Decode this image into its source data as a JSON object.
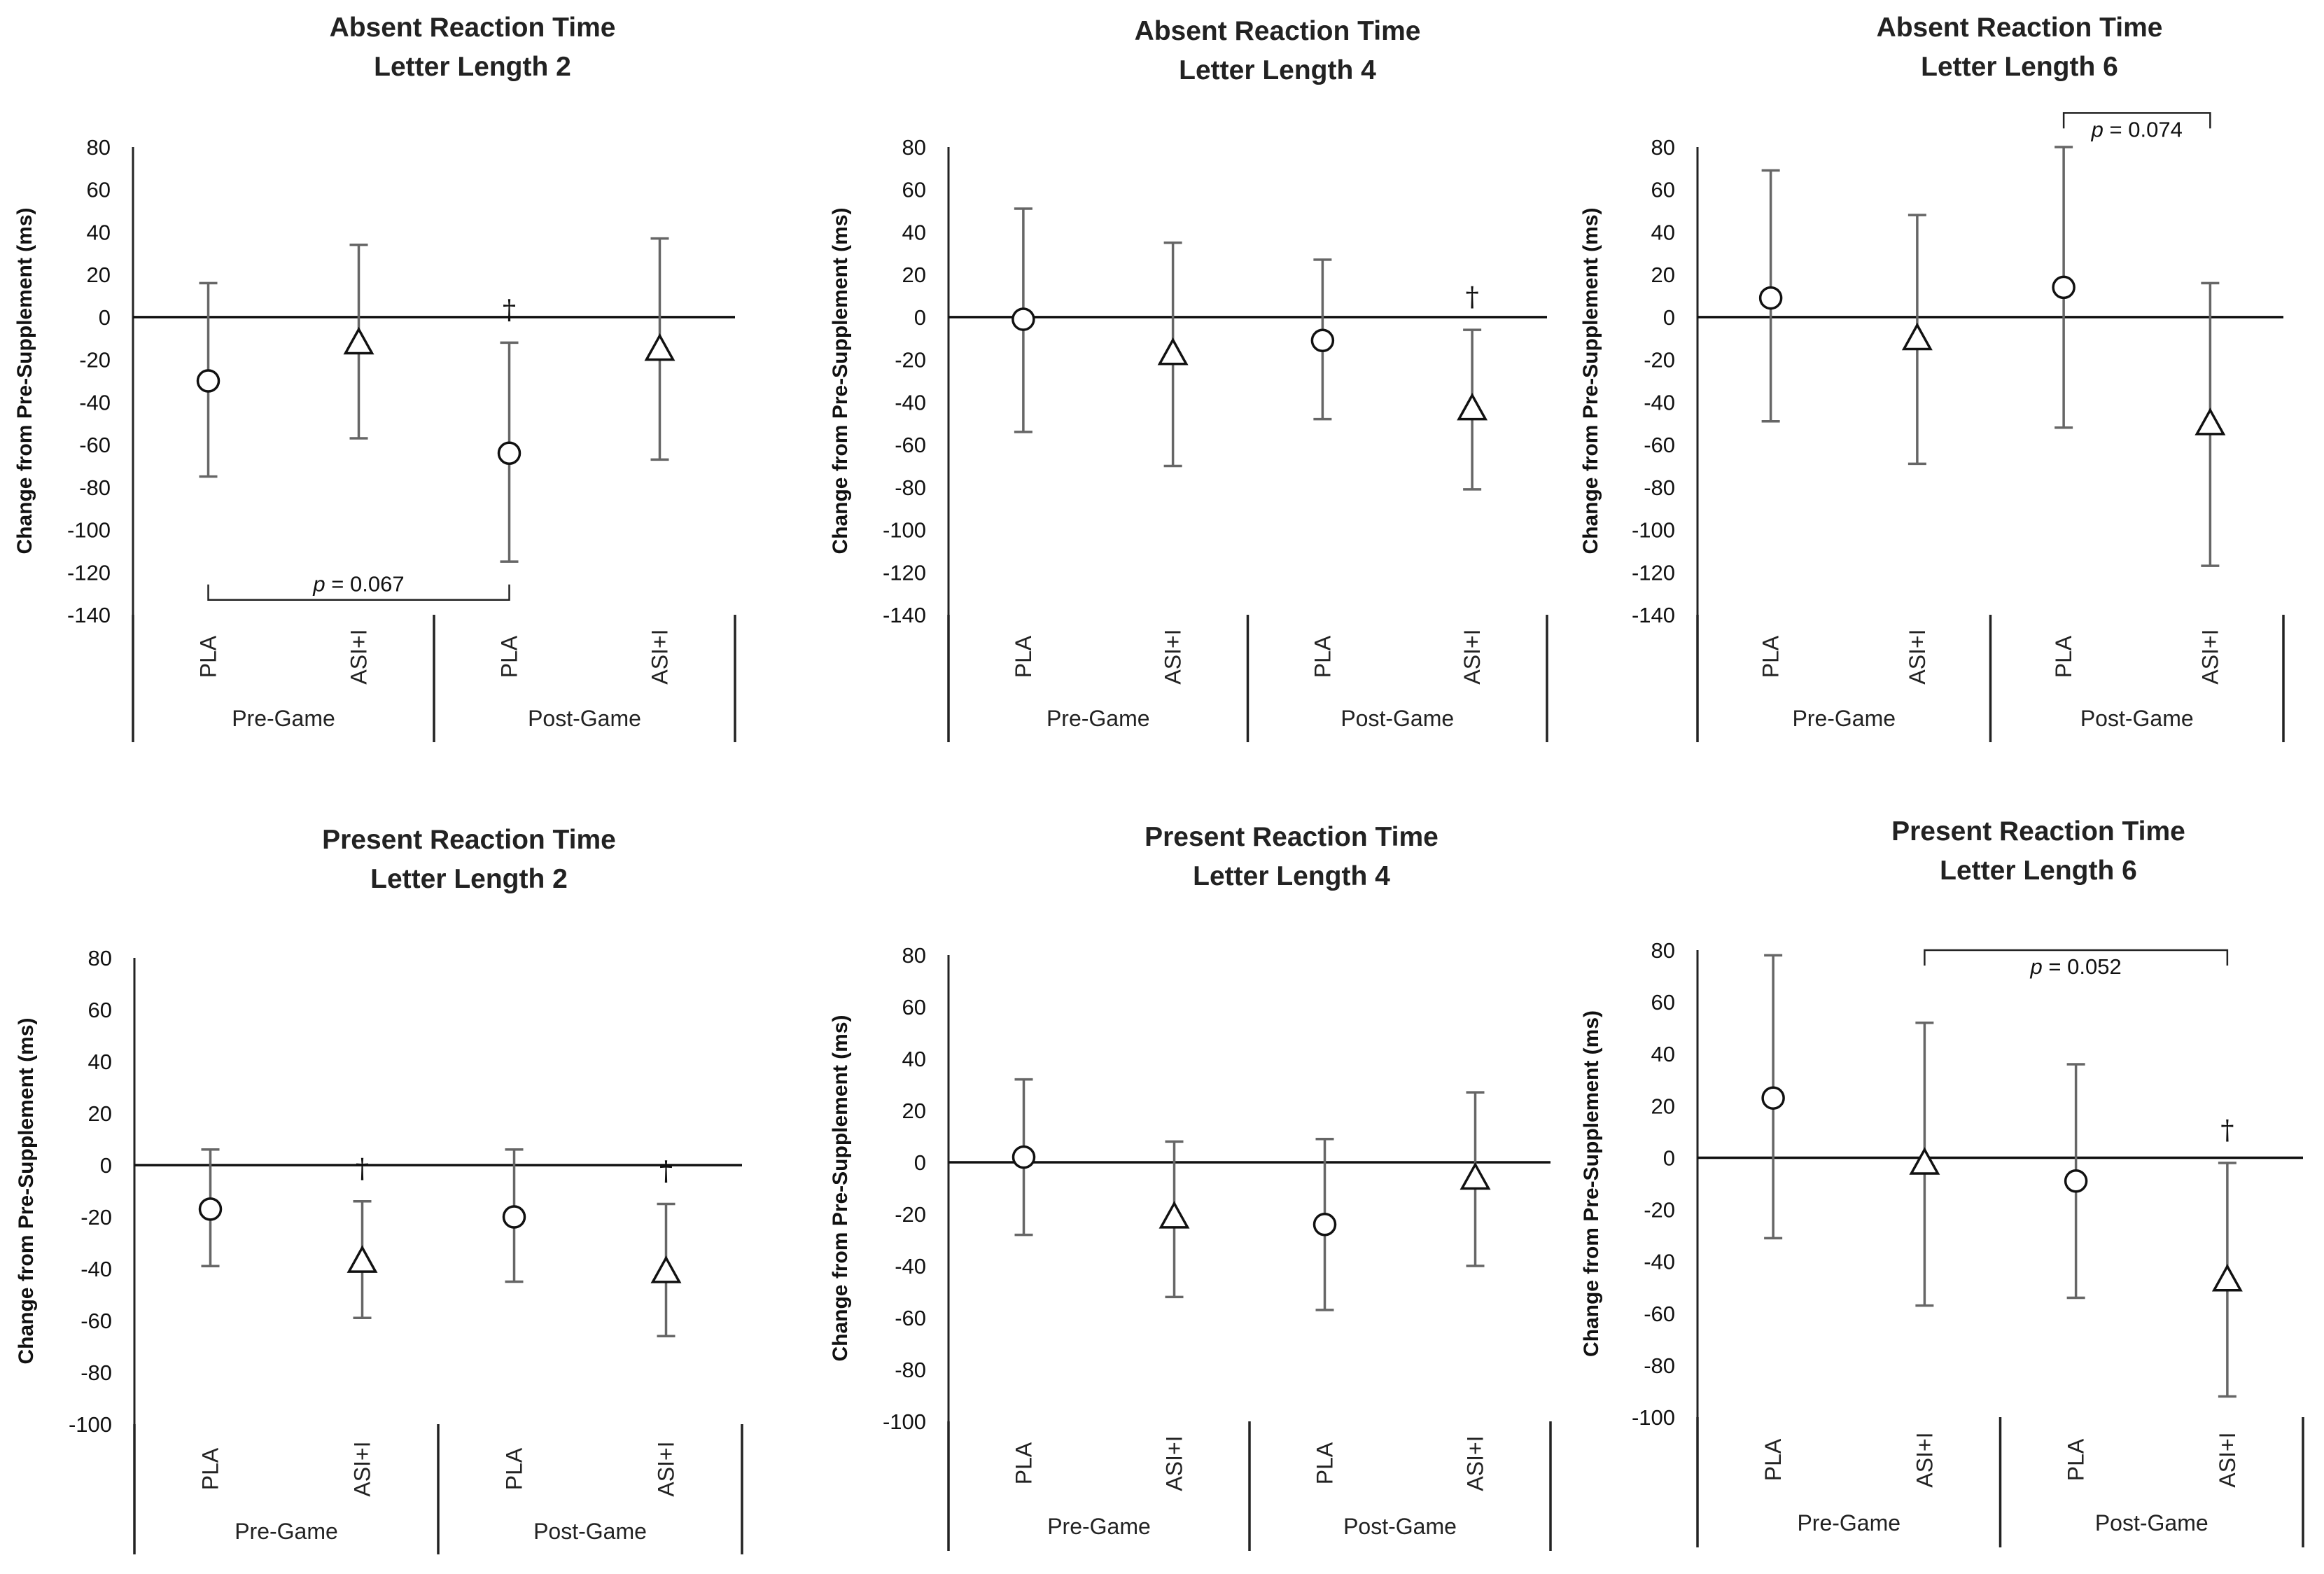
{
  "chart_data": [
    {
      "type": "scatter",
      "title": [
        "Absent Reaction Time",
        "Letter Length 2"
      ],
      "ylabel": "Change from Pre-Supplement (ms)",
      "ylim": [
        -140,
        80
      ],
      "yticks": [
        80,
        60,
        40,
        20,
        0,
        -20,
        -40,
        -60,
        -80,
        -100,
        -120,
        -140
      ],
      "groups": [
        "Pre-Game",
        "Post-Game"
      ],
      "categories": [
        "PLA",
        "ASI+I",
        "PLA",
        "ASI+I"
      ],
      "points": [
        {
          "category": "PLA",
          "group": "Pre-Game",
          "marker": "circle",
          "mean": -30,
          "low": -75,
          "high": 16
        },
        {
          "category": "ASI+I",
          "group": "Pre-Game",
          "marker": "triangle",
          "mean": -12,
          "low": -57,
          "high": 34
        },
        {
          "category": "PLA",
          "group": "Post-Game",
          "marker": "circle",
          "mean": -64,
          "low": -115,
          "high": -12
        },
        {
          "category": "ASI+I",
          "group": "Post-Game",
          "marker": "triangle",
          "mean": -15,
          "low": -67,
          "high": 37
        }
      ],
      "dagger_indices": [
        2
      ],
      "dagger": "†",
      "brackets": [
        {
          "from": 0,
          "to": 2,
          "side": "below",
          "y": -133,
          "label_p": "p",
          "label_rest": " = 0.067"
        }
      ]
    },
    {
      "type": "scatter",
      "title": [
        "Absent Reaction Time",
        "Letter Length 4"
      ],
      "ylabel": "Change from Pre-Supplement (ms)",
      "ylim": [
        -140,
        80
      ],
      "yticks": [
        80,
        60,
        40,
        20,
        0,
        -20,
        -40,
        -60,
        -80,
        -100,
        -120,
        -140
      ],
      "groups": [
        "Pre-Game",
        "Post-Game"
      ],
      "categories": [
        "PLA",
        "ASI+I",
        "PLA",
        "ASI+I"
      ],
      "points": [
        {
          "category": "PLA",
          "group": "Pre-Game",
          "marker": "circle",
          "mean": -1,
          "low": -54,
          "high": 51
        },
        {
          "category": "ASI+I",
          "group": "Pre-Game",
          "marker": "triangle",
          "mean": -17,
          "low": -70,
          "high": 35
        },
        {
          "category": "PLA",
          "group": "Post-Game",
          "marker": "circle",
          "mean": -11,
          "low": -48,
          "high": 27
        },
        {
          "category": "ASI+I",
          "group": "Post-Game",
          "marker": "triangle",
          "mean": -43,
          "low": -81,
          "high": -6
        }
      ],
      "dagger_indices": [
        3
      ],
      "dagger": "†",
      "brackets": []
    },
    {
      "type": "scatter",
      "title": [
        "Absent Reaction Time",
        "Letter Length 6"
      ],
      "ylabel": "Change from Pre-Supplement (ms)",
      "ylim": [
        -140,
        80
      ],
      "yticks": [
        80,
        60,
        40,
        20,
        0,
        -20,
        -40,
        -60,
        -80,
        -100,
        -120,
        -140
      ],
      "groups": [
        "Pre-Game",
        "Post-Game"
      ],
      "categories": [
        "PLA",
        "ASI+I",
        "PLA",
        "ASI+I"
      ],
      "points": [
        {
          "category": "PLA",
          "group": "Pre-Game",
          "marker": "circle",
          "mean": 9,
          "low": -49,
          "high": 69
        },
        {
          "category": "ASI+I",
          "group": "Pre-Game",
          "marker": "triangle",
          "mean": -10,
          "low": -69,
          "high": 48
        },
        {
          "category": "PLA",
          "group": "Post-Game",
          "marker": "circle",
          "mean": 14,
          "low": -52,
          "high": 80
        },
        {
          "category": "ASI+I",
          "group": "Post-Game",
          "marker": "triangle",
          "mean": -50,
          "low": -117,
          "high": 16
        }
      ],
      "dagger_indices": [],
      "dagger": "†",
      "brackets": [
        {
          "from": 2,
          "to": 3,
          "side": "above",
          "y": 96,
          "label_p": "p",
          "label_rest": " = 0.074"
        }
      ]
    },
    {
      "type": "scatter",
      "title": [
        "Present Reaction Time",
        "Letter Length 2"
      ],
      "ylabel": "Change from Pre-Supplement (ms)",
      "ylim": [
        -100,
        80
      ],
      "yticks": [
        80,
        60,
        40,
        20,
        0,
        -20,
        -40,
        -60,
        -80,
        -100
      ],
      "groups": [
        "Pre-Game",
        "Post-Game"
      ],
      "categories": [
        "PLA",
        "ASI+I",
        "PLA",
        "ASI+I"
      ],
      "points": [
        {
          "category": "PLA",
          "group": "Pre-Game",
          "marker": "circle",
          "mean": -17,
          "low": -39,
          "high": 6
        },
        {
          "category": "ASI+I",
          "group": "Pre-Game",
          "marker": "triangle",
          "mean": -37,
          "low": -59,
          "high": -14
        },
        {
          "category": "PLA",
          "group": "Post-Game",
          "marker": "circle",
          "mean": -20,
          "low": -45,
          "high": 6
        },
        {
          "category": "ASI+I",
          "group": "Post-Game",
          "marker": "triangle",
          "mean": -41,
          "low": -66,
          "high": -15
        }
      ],
      "dagger_indices": [
        1,
        3
      ],
      "dagger": "†",
      "brackets": []
    },
    {
      "type": "scatter",
      "title": [
        "Present Reaction Time",
        "Letter Length 4"
      ],
      "ylabel": "Change from Pre-Supplement (ms)",
      "ylim": [
        -100,
        80
      ],
      "yticks": [
        80,
        60,
        40,
        20,
        0,
        -20,
        -40,
        -60,
        -80,
        -100
      ],
      "groups": [
        "Pre-Game",
        "Post-Game"
      ],
      "categories": [
        "PLA",
        "ASI+I",
        "PLA",
        "ASI+I"
      ],
      "points": [
        {
          "category": "PLA",
          "group": "Pre-Game",
          "marker": "circle",
          "mean": 2,
          "low": -28,
          "high": 32
        },
        {
          "category": "ASI+I",
          "group": "Pre-Game",
          "marker": "triangle",
          "mean": -21,
          "low": -52,
          "high": 8
        },
        {
          "category": "PLA",
          "group": "Post-Game",
          "marker": "circle",
          "mean": -24,
          "low": -57,
          "high": 9
        },
        {
          "category": "ASI+I",
          "group": "Post-Game",
          "marker": "triangle",
          "mean": -6,
          "low": -40,
          "high": 27
        }
      ],
      "dagger_indices": [],
      "dagger": "†",
      "brackets": []
    },
    {
      "type": "scatter",
      "title": [
        "Present Reaction Time",
        "Letter Length 6"
      ],
      "ylabel": "Change from Pre-Supplement (ms)",
      "ylim": [
        -100,
        80
      ],
      "yticks": [
        80,
        60,
        40,
        20,
        0,
        -20,
        -40,
        -60,
        -80,
        -100
      ],
      "groups": [
        "Pre-Game",
        "Post-Game"
      ],
      "categories": [
        "PLA",
        "ASI+I",
        "PLA",
        "ASI+I"
      ],
      "points": [
        {
          "category": "PLA",
          "group": "Pre-Game",
          "marker": "circle",
          "mean": 23,
          "low": -31,
          "high": 78
        },
        {
          "category": "ASI+I",
          "group": "Pre-Game",
          "marker": "triangle",
          "mean": -2,
          "low": -57,
          "high": 52
        },
        {
          "category": "PLA",
          "group": "Post-Game",
          "marker": "circle",
          "mean": -9,
          "low": -54,
          "high": 36
        },
        {
          "category": "ASI+I",
          "group": "Post-Game",
          "marker": "triangle",
          "mean": -47,
          "low": -92,
          "high": -2
        }
      ],
      "dagger_indices": [
        3
      ],
      "dagger": "†",
      "brackets": [
        {
          "from": 1,
          "to": 3,
          "side": "above",
          "y": 80,
          "label_p": "p",
          "label_rest": " = 0.052"
        }
      ]
    }
  ]
}
